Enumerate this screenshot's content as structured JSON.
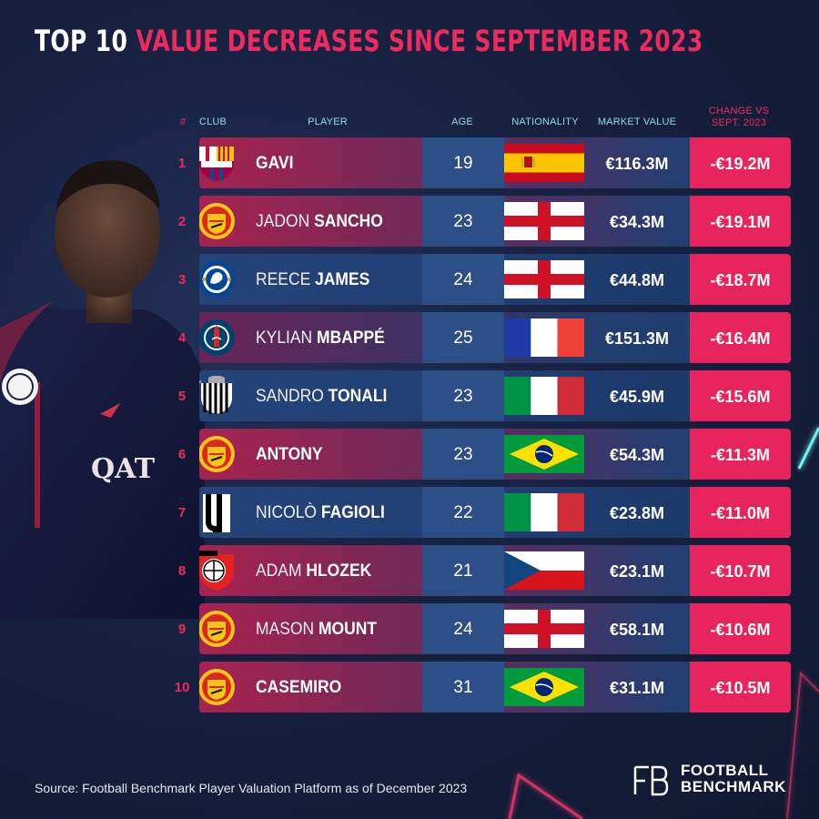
{
  "title_part1": "TOP 10",
  "title_part2": "VALUE DECREASES SINCE SEPTEMBER 2023",
  "columns": {
    "rank": "#",
    "club": "CLUB",
    "player": "PLAYER",
    "age": "AGE",
    "nationality": "NATIONALITY",
    "market_value": "MARKET VALUE",
    "change_line1": "CHANGE VS",
    "change_line2": "SEPT. 2023"
  },
  "colors": {
    "accent": "#e8245c",
    "teal": "#8fdde0",
    "background": "#17213f"
  },
  "chart_data": {
    "type": "table",
    "title": "TOP 10 VALUE DECREASES SINCE SEPTEMBER 2023",
    "rows": [
      {
        "rank": "1",
        "first": "",
        "last": "GAVI",
        "club": "fc-barcelona-crest",
        "age": "19",
        "nationality": "spain-flag",
        "market_value": "€116.3M",
        "change": "-€19.2M",
        "change_value_m": -19.2
      },
      {
        "rank": "2",
        "first": "JADON",
        "last": "SANCHO",
        "club": "manchester-united-crest",
        "age": "23",
        "nationality": "england-flag",
        "market_value": "€34.3M",
        "change": "-€19.1M",
        "change_value_m": -19.1
      },
      {
        "rank": "3",
        "first": "REECE",
        "last": "JAMES",
        "club": "chelsea-crest",
        "age": "24",
        "nationality": "england-flag",
        "market_value": "€44.8M",
        "change": "-€18.7M",
        "change_value_m": -18.7
      },
      {
        "rank": "4",
        "first": "KYLIAN",
        "last": "MBAPPÉ",
        "club": "psg-crest",
        "age": "25",
        "nationality": "france-flag",
        "market_value": "€151.3M",
        "change": "-€16.4M",
        "change_value_m": -16.4
      },
      {
        "rank": "5",
        "first": "SANDRO",
        "last": "TONALI",
        "club": "newcastle-crest",
        "age": "23",
        "nationality": "italy-flag",
        "market_value": "€45.9M",
        "change": "-€15.6M",
        "change_value_m": -15.6
      },
      {
        "rank": "6",
        "first": "",
        "last": "ANTONY",
        "club": "manchester-united-crest",
        "age": "23",
        "nationality": "brazil-flag",
        "market_value": "€54.3M",
        "change": "-€11.3M",
        "change_value_m": -11.3
      },
      {
        "rank": "7",
        "first": "NICOLÒ",
        "last": "FAGIOLI",
        "club": "juventus-crest",
        "age": "22",
        "nationality": "italy-flag",
        "market_value": "€23.8M",
        "change": "-€11.0M",
        "change_value_m": -11.0
      },
      {
        "rank": "8",
        "first": "ADAM",
        "last": "HLOZEK",
        "club": "bayer-leverkusen-crest",
        "age": "21",
        "nationality": "czech-flag",
        "market_value": "€23.1M",
        "change": "-€10.7M",
        "change_value_m": -10.7
      },
      {
        "rank": "9",
        "first": "MASON",
        "last": "MOUNT",
        "club": "manchester-united-crest",
        "age": "24",
        "nationality": "england-flag",
        "market_value": "€58.1M",
        "change": "-€10.6M",
        "change_value_m": -10.6
      },
      {
        "rank": "10",
        "first": "",
        "last": "CASEMIRO",
        "club": "manchester-united-crest",
        "age": "31",
        "nationality": "brazil-flag",
        "market_value": "€31.1M",
        "change": "-€10.5M",
        "change_value_m": -10.5
      }
    ]
  },
  "source": "Source: Football Benchmark Player Valuation Platform as of December 2023",
  "brand_line1": "FOOTBALL",
  "brand_line2": "BENCHMARK",
  "logo_text": "FB"
}
